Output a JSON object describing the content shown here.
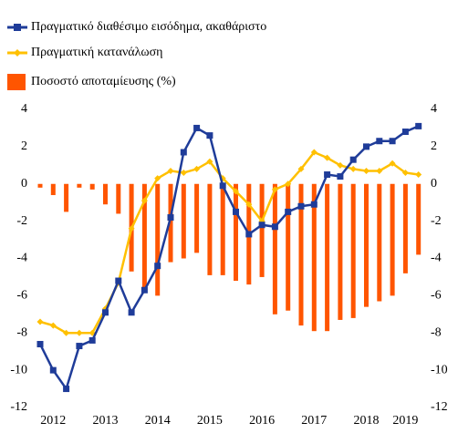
{
  "chart_data": {
    "type": "line_bar",
    "categories": [
      null,
      "2012",
      null,
      null,
      null,
      "2013",
      null,
      null,
      null,
      "2014",
      null,
      null,
      null,
      "2015",
      null,
      null,
      null,
      "2016",
      null,
      null,
      null,
      "2017",
      null,
      null,
      null,
      "2018",
      null,
      null,
      "2019",
      null
    ],
    "series": [
      {
        "name": "Πραγματικό διαθέσιμο εισόδημα, ακαθάριστο",
        "color": "#1f3c99",
        "kind": "line",
        "marker": "square",
        "values": [
          -8.6,
          -10,
          -11,
          -8.7,
          -8.4,
          -6.9,
          -5.2,
          -6.9,
          -5.7,
          -4.4,
          -1.8,
          1.7,
          3.0,
          2.6,
          -0.1,
          -1.5,
          -2.7,
          -2.2,
          -2.3,
          -1.5,
          -1.2,
          -1.1,
          0.5,
          0.4,
          1.3,
          2.0,
          2.3,
          2.3,
          2.8,
          3.1
        ]
      },
      {
        "name": "Πραγματική κατανάλωση",
        "color": "#ffc000",
        "kind": "line",
        "marker": "diamond",
        "values": [
          -7.4,
          -7.6,
          -8.0,
          -8.0,
          -8.0,
          -6.7,
          -5.3,
          -2.4,
          -0.9,
          0.3,
          0.7,
          0.6,
          0.8,
          1.2,
          0.3,
          -0.4,
          -1.1,
          -2.0,
          -0.3,
          0.0,
          0.8,
          1.7,
          1.4,
          1.0,
          0.8,
          0.7,
          0.7,
          1.1,
          0.6,
          0.5
        ]
      },
      {
        "name": "Ποσοστό αποταμίευσης (%)",
        "color": "#ff5500",
        "kind": "bar",
        "values": [
          -0.2,
          -0.6,
          -1.5,
          -0.2,
          -0.3,
          -1.1,
          -1.6,
          -4.7,
          -5.6,
          -6.0,
          -4.2,
          -4.0,
          -3.7,
          -4.9,
          -4.9,
          -5.2,
          -5.4,
          -5.0,
          -7.0,
          -6.8,
          -7.6,
          -7.9,
          -7.9,
          -7.3,
          -7.2,
          -6.6,
          -6.3,
          -6.0,
          -4.8,
          -3.8
        ]
      }
    ],
    "ylim": [
      -12,
      4
    ],
    "yticks": [
      -12,
      -10,
      -8,
      -6,
      -4,
      -2,
      0,
      2,
      4
    ],
    "y2lim": [
      -12,
      4
    ],
    "y2ticks": [
      -12,
      -10,
      -8,
      -6,
      -4,
      -2,
      0,
      2,
      4
    ]
  }
}
